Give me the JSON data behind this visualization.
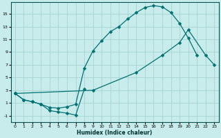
{
  "title": "",
  "xlabel": "Humidex (Indice chaleur)",
  "bg_color": "#c8ecec",
  "grid_color": "#a8d4d4",
  "line_color": "#007070",
  "xlim": [
    -0.5,
    23.5
  ],
  "ylim": [
    -2.0,
    16.8
  ],
  "xticks": [
    0,
    1,
    2,
    3,
    4,
    5,
    6,
    7,
    8,
    9,
    10,
    11,
    12,
    13,
    14,
    15,
    16,
    17,
    18,
    19,
    20,
    21,
    22,
    23
  ],
  "yticks": [
    -1,
    1,
    3,
    5,
    7,
    9,
    11,
    13,
    15
  ],
  "line1_x": [
    0,
    1,
    2,
    3,
    4,
    5,
    6,
    7,
    8
  ],
  "line1_y": [
    2.5,
    1.5,
    1.2,
    0.8,
    -0.2,
    -0.4,
    -0.6,
    -0.9,
    3.2
  ],
  "line2_x": [
    0,
    1,
    2,
    3,
    4,
    5,
    6,
    7,
    8,
    9,
    10,
    11,
    12,
    13,
    14,
    15,
    16,
    17,
    18,
    19,
    20,
    21
  ],
  "line2_y": [
    2.5,
    1.5,
    1.2,
    0.8,
    0.3,
    0.2,
    0.4,
    0.8,
    6.5,
    9.2,
    10.8,
    12.2,
    13.0,
    14.2,
    15.2,
    16.0,
    16.3,
    16.1,
    15.2,
    13.5,
    11.2,
    8.5
  ],
  "line3_x": [
    0,
    9,
    14,
    17,
    19,
    20,
    22,
    23
  ],
  "line3_y": [
    2.5,
    3.0,
    5.8,
    8.5,
    10.5,
    12.5,
    8.5,
    7.0
  ]
}
